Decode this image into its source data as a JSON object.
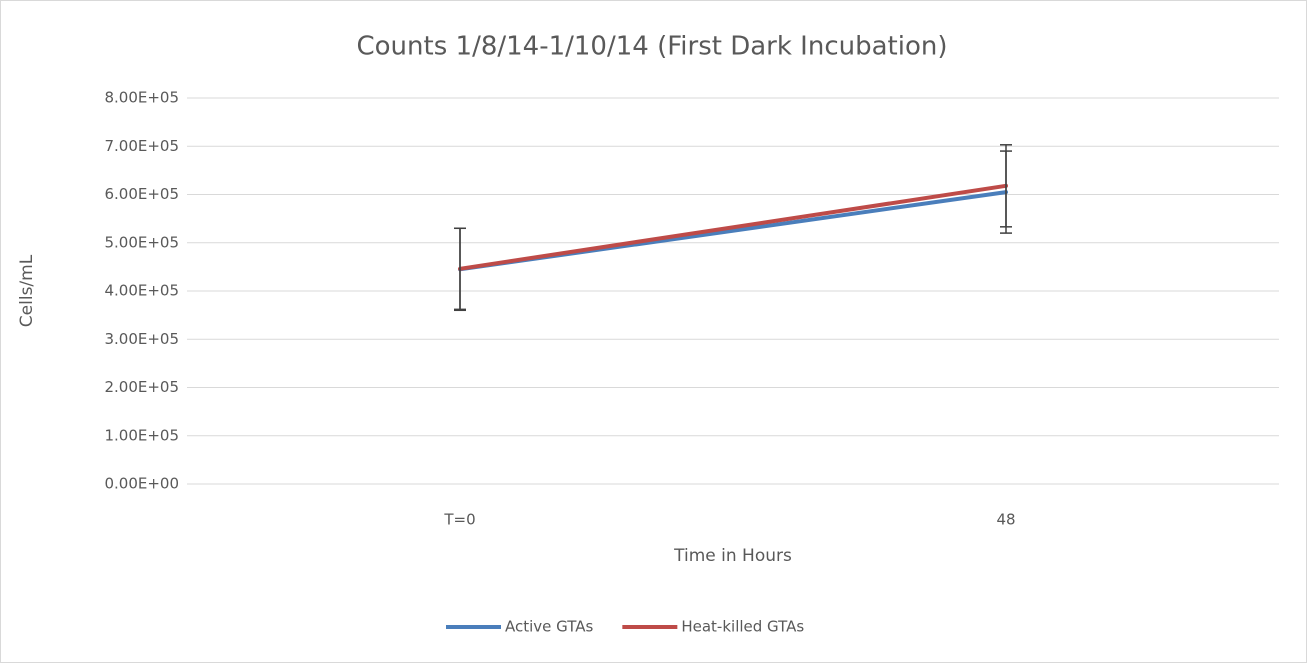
{
  "chart_data": {
    "type": "line",
    "title": "Counts 1/8/14-1/10/14 (First Dark Incubation)",
    "x_label": "Time in Hours",
    "y_label": "Cells/mL",
    "categories": [
      "T=0",
      "48"
    ],
    "series": [
      {
        "name": "Active GTAs",
        "color": "#4a7ebb",
        "values": [
          445000,
          605000
        ],
        "errors": [
          85000,
          85000
        ]
      },
      {
        "name": "Heat-killed GTAs",
        "color": "#be4b48",
        "values": [
          446000,
          618000
        ],
        "errors": [
          84000,
          85000
        ]
      }
    ],
    "ylim": [
      0,
      800000
    ],
    "yticks": [
      {
        "value": 0,
        "label": "0.00E+00"
      },
      {
        "value": 100000,
        "label": "1.00E+05"
      },
      {
        "value": 200000,
        "label": "2.00E+05"
      },
      {
        "value": 300000,
        "label": "3.00E+05"
      },
      {
        "value": 400000,
        "label": "4.00E+05"
      },
      {
        "value": 500000,
        "label": "5.00E+05"
      },
      {
        "value": 600000,
        "label": "6.00E+05"
      },
      {
        "value": 700000,
        "label": "7.00E+05"
      },
      {
        "value": 800000,
        "label": "8.00E+05"
      }
    ],
    "grid": true,
    "legend": "bottom"
  }
}
